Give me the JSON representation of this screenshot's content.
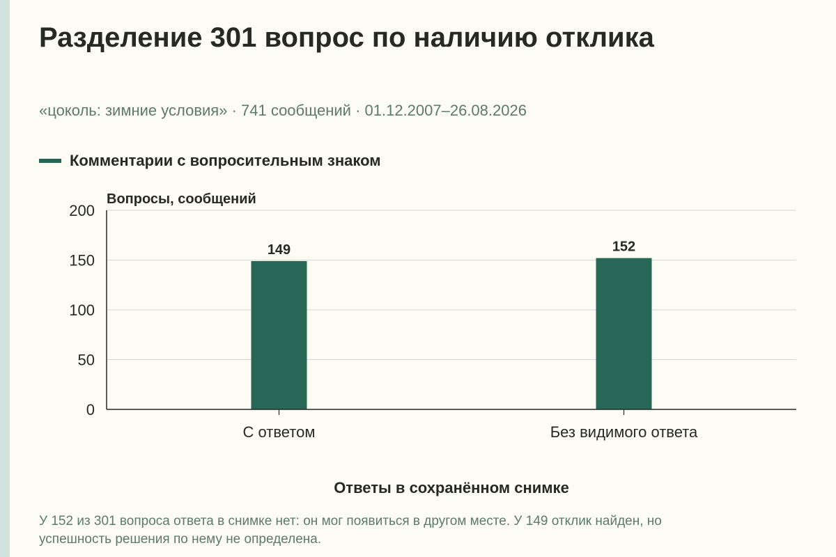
{
  "colors": {
    "bar": "#286655",
    "grid": "#d8d9d2",
    "axis": "#262a22",
    "text": "#262a22",
    "muted": "#5d7a6c",
    "left_strip": "#cfe3dc",
    "background": "#fdfcf4"
  },
  "footnote": "У 152 из 301 вопроса ответа в снимке нет: он мог появиться в другом месте. У 149 отклик найден, но успешность решения по нему не определена.",
  "chart_data": {
    "type": "bar",
    "title": "Разделение 301 вопрос по наличию отклика",
    "subtitle": "«цоколь: зимние условия» · 741 сообщений · 01.12.2007–26.08.2026",
    "xlabel": "Ответы в сохранённом снимке",
    "ylabel": "Вопросы, сообщений",
    "categories": [
      "С ответом",
      "Без видимого ответа"
    ],
    "series": [
      {
        "name": "Комментарии с вопросительным знаком",
        "values": [
          149,
          152
        ]
      }
    ],
    "data_labels": [
      "149",
      "152"
    ],
    "ylim": [
      0,
      200
    ],
    "yticks": [
      0,
      50,
      100,
      150,
      200
    ],
    "grid": true,
    "legend": "top-left"
  }
}
